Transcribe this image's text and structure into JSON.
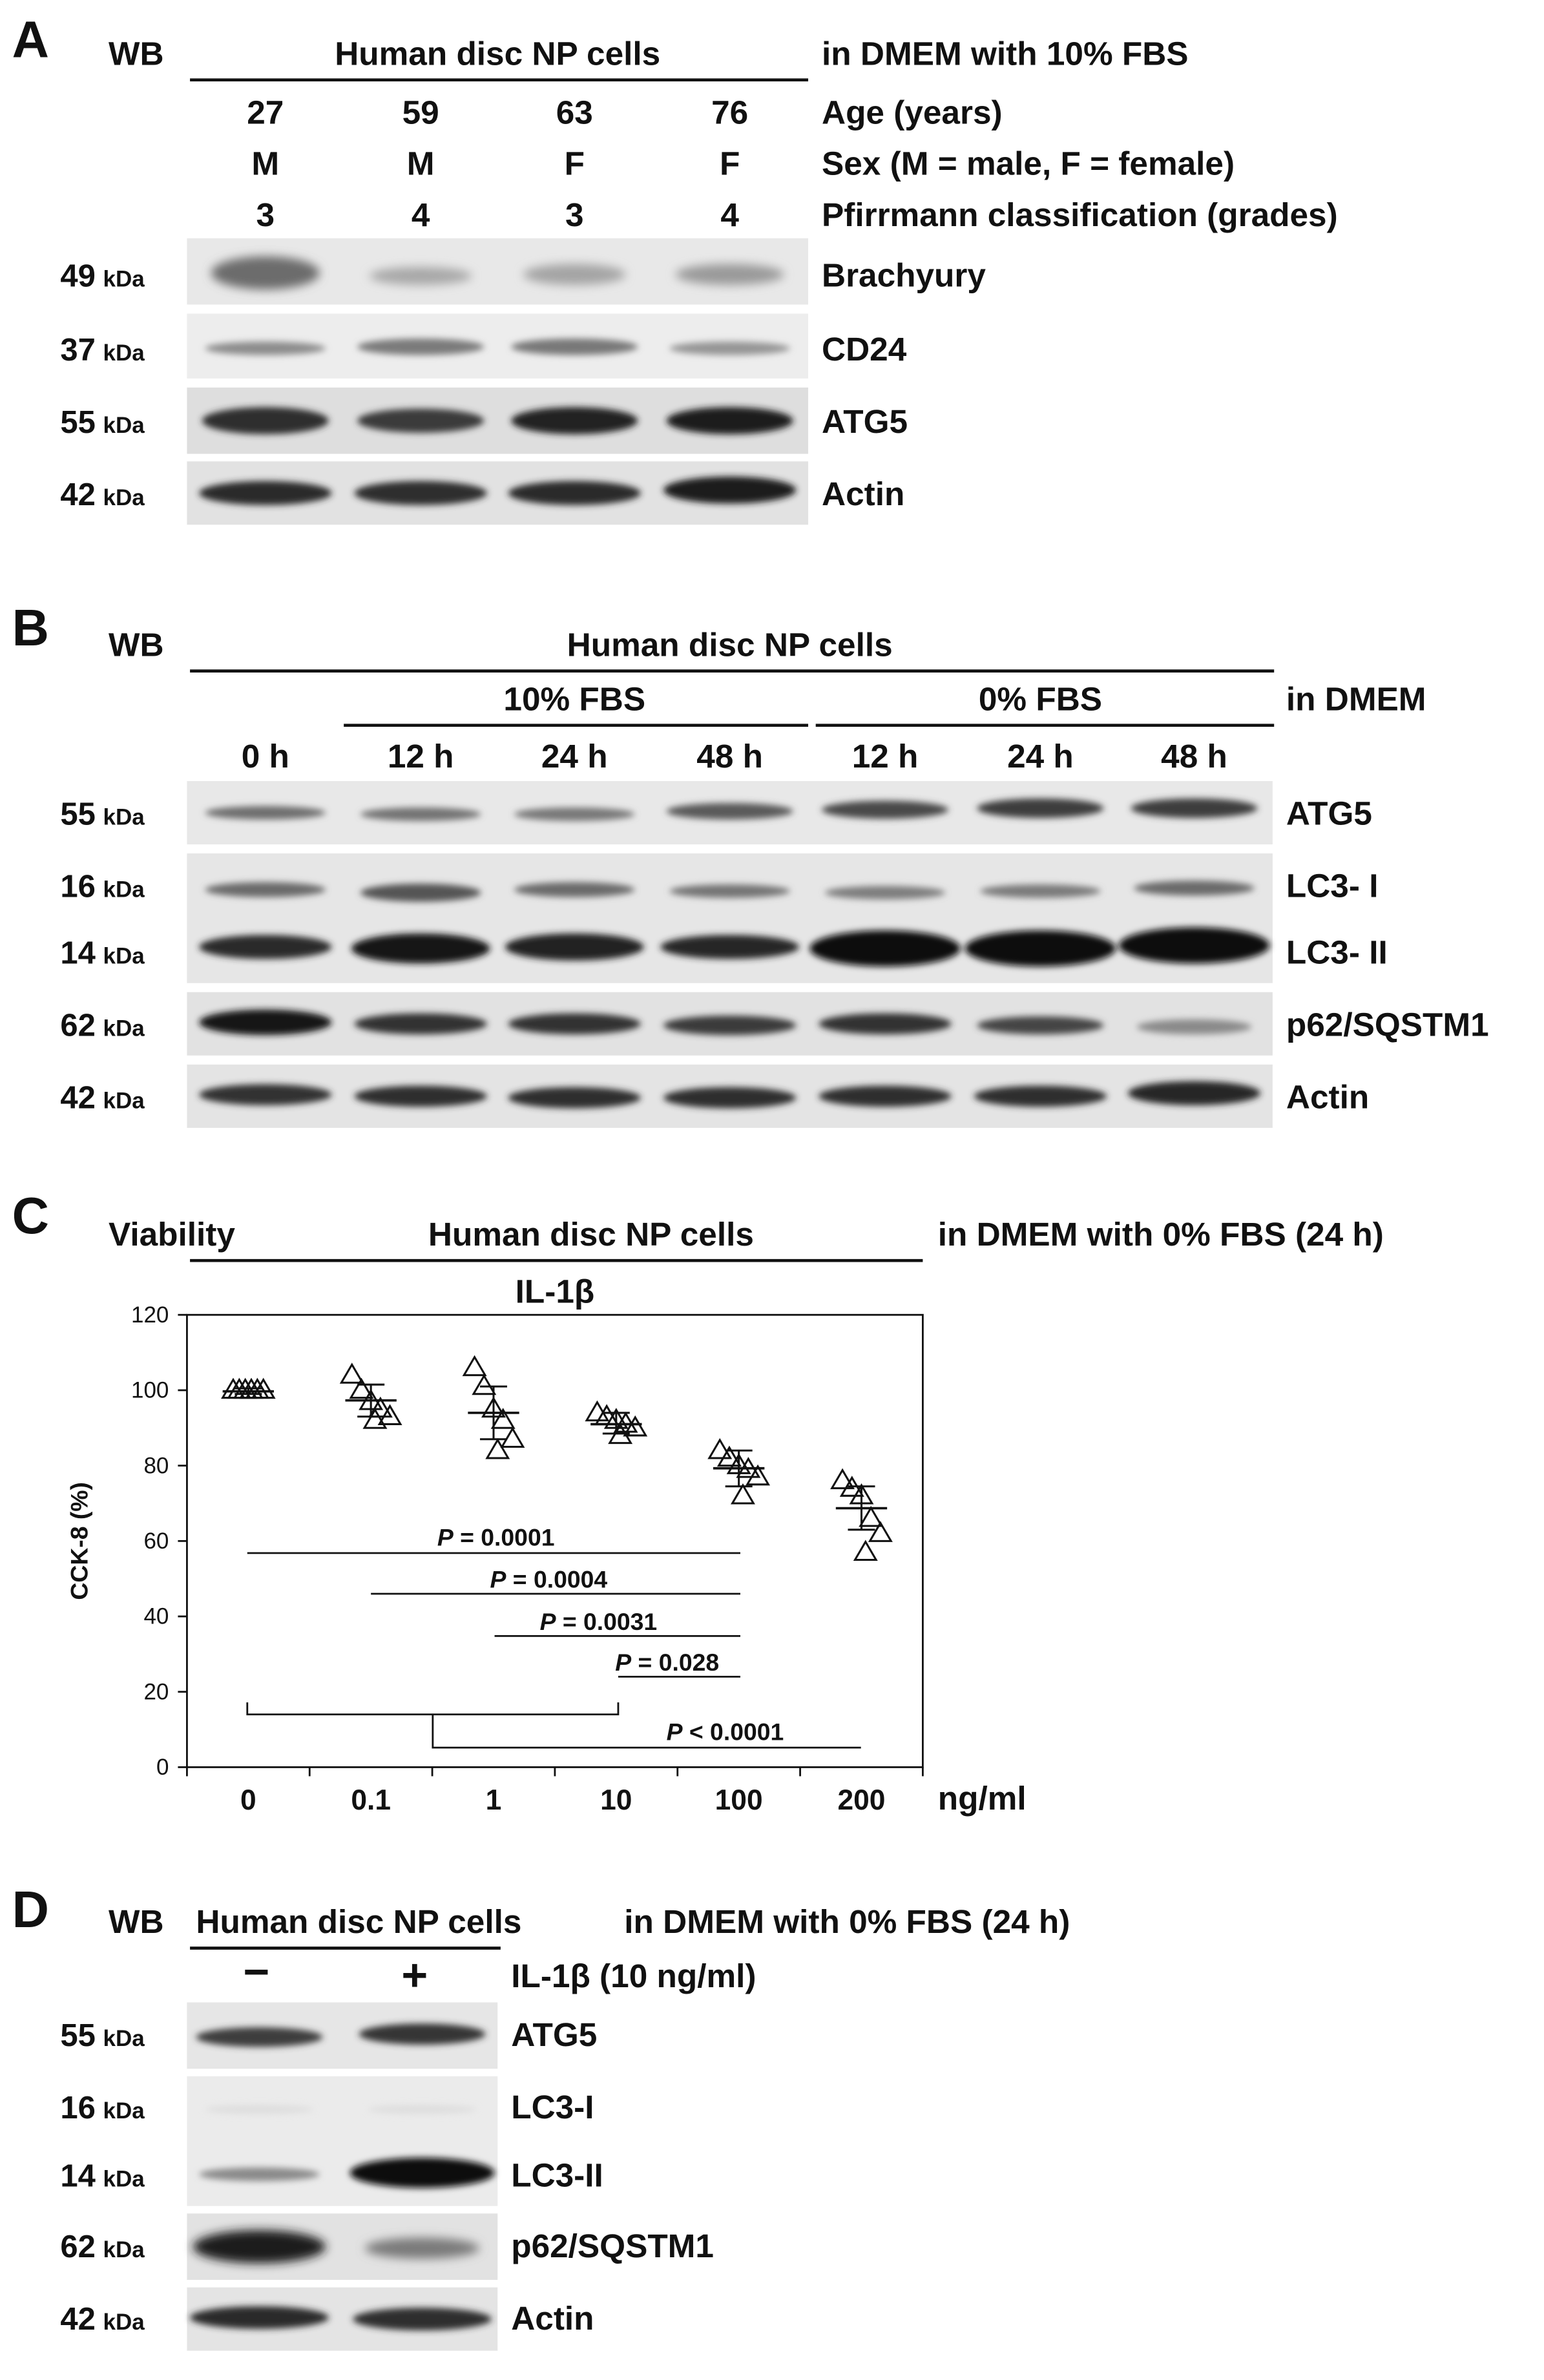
{
  "panels": [
    "A",
    "B",
    "C",
    "D"
  ],
  "panel_a": {
    "wb": "WB",
    "cells": "Human disc NP cells",
    "medium": "in DMEM with 10% FBS",
    "rows": [
      {
        "label": "Age (years)",
        "values": [
          "27",
          "59",
          "63",
          "76"
        ]
      },
      {
        "label": "Sex (M = male, F = female)",
        "values": [
          "M",
          "M",
          "F",
          "F"
        ]
      },
      {
        "label": "Pfirrmann classification (grades)",
        "values": [
          "3",
          "4",
          "3",
          "4"
        ]
      }
    ],
    "blots": [
      {
        "kda": "49",
        "unit": "kDa",
        "protein": "Brachyury"
      },
      {
        "kda": "37",
        "unit": "kDa",
        "protein": "CD24"
      },
      {
        "kda": "55",
        "unit": "kDa",
        "protein": "ATG5"
      },
      {
        "kda": "42",
        "unit": "kDa",
        "protein": "Actin"
      }
    ]
  },
  "panel_b": {
    "wb": "WB",
    "cells": "Human disc NP cells",
    "group1": "10% FBS",
    "group2": "0% FBS",
    "medium": "in DMEM",
    "times": [
      "0 h",
      "12 h",
      "24 h",
      "48 h",
      "12 h",
      "24 h",
      "48 h"
    ],
    "blots": [
      {
        "kda": "55",
        "unit": "kDa",
        "protein": "ATG5"
      },
      {
        "kda": "16",
        "unit": "kDa",
        "protein": "LC3- I"
      },
      {
        "kda": "14",
        "unit": "kDa",
        "protein": "LC3- II"
      },
      {
        "kda": "62",
        "unit": "kDa",
        "protein": "p62/SQSTM1"
      },
      {
        "kda": "42",
        "unit": "kDa",
        "protein": "Actin"
      }
    ]
  },
  "panel_c": {
    "viability": "Viability",
    "cells": "Human disc NP cells",
    "medium": "in DMEM with 0% FBS (24 h)",
    "treatment": "IL-1β",
    "p_prefix": "P",
    "p_values": [
      " = 0.0001",
      " = 0.0004",
      " = 0.0031",
      " = 0.028",
      " < 0.0001"
    ]
  },
  "chart_data": {
    "type": "scatter",
    "title": "",
    "xlabel": "ng/ml",
    "ylabel": "CCK-8 (%)",
    "categories": [
      "0",
      "0.1",
      "1",
      "10",
      "100",
      "200"
    ],
    "ylim": [
      0,
      120
    ],
    "yticks": [
      0,
      20,
      40,
      60,
      80,
      100,
      120
    ],
    "points": [
      [
        100,
        100,
        100,
        100,
        100,
        100
      ],
      [
        104,
        100,
        97,
        95,
        93,
        92
      ],
      [
        106,
        101,
        95,
        92,
        87,
        84
      ],
      [
        94,
        93,
        92,
        91,
        90,
        88
      ],
      [
        84,
        82,
        80,
        79,
        77,
        72
      ],
      [
        76,
        74,
        72,
        66,
        62,
        57
      ]
    ],
    "means": [
      99.7,
      97.3,
      94.0,
      91.0,
      79.3,
      68.7
    ],
    "error_bars": [
      [
        99,
        100.5
      ],
      [
        93,
        101.5
      ],
      [
        87,
        101
      ],
      [
        88.5,
        94
      ],
      [
        74.5,
        84
      ],
      [
        63,
        74.5
      ]
    ],
    "marker": "open triangle"
  },
  "panel_d": {
    "wb": "WB",
    "cells": "Human disc NP cells",
    "medium": "in DMEM with 0% FBS (24 h)",
    "lanes": [
      "−",
      "+"
    ],
    "treatment": "IL-1β (10 ng/ml)",
    "blots": [
      {
        "kda": "55",
        "unit": "kDa",
        "protein": "ATG5"
      },
      {
        "kda": "16",
        "unit": "kDa",
        "protein": "LC3-I"
      },
      {
        "kda": "14",
        "unit": "kDa",
        "protein": "LC3-II"
      },
      {
        "kda": "62",
        "unit": "kDa",
        "protein": "p62/SQSTM1"
      },
      {
        "kda": "42",
        "unit": "kDa",
        "protein": "Actin"
      }
    ]
  }
}
